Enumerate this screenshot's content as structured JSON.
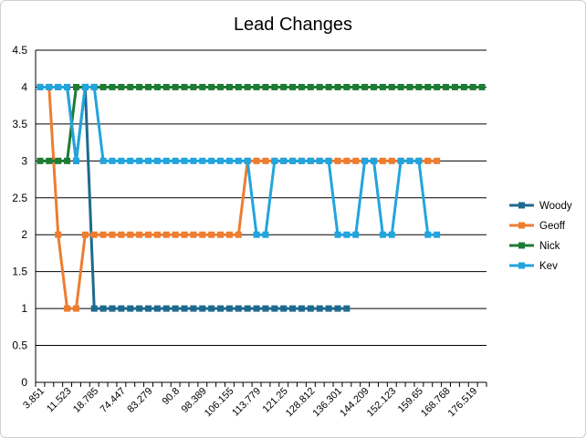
{
  "chart_data": {
    "type": "line",
    "title": "Lead Changes",
    "xlabel": "",
    "ylabel": "",
    "ylim": [
      0,
      4.5
    ],
    "yticks": [
      "0",
      "0.5",
      "1",
      "1.5",
      "2",
      "2.5",
      "3",
      "3.5",
      "4",
      "4.5"
    ],
    "x_tick_labels": [
      "3.851",
      "11.523",
      "18.785",
      "74.447",
      "83.279",
      "90.8",
      "98.389",
      "106.155",
      "113.779",
      "121.25",
      "128.812",
      "136.301",
      "144.209",
      "152.123",
      "159.65",
      "168.768",
      "176.519"
    ],
    "x_tick_label_every": 3,
    "n_categories": 50,
    "grid": true,
    "legend": "right",
    "series": [
      {
        "name": "Woody",
        "color": "#1e6a8e",
        "values": [
          4,
          4,
          4,
          4,
          3,
          4,
          1,
          1,
          1,
          1,
          1,
          1,
          1,
          1,
          1,
          1,
          1,
          1,
          1,
          1,
          1,
          1,
          1,
          1,
          1,
          1,
          1,
          1,
          1,
          1,
          1,
          1,
          1,
          1,
          1
        ]
      },
      {
        "name": "Geoff",
        "color": "#ed7d31",
        "values": [
          4,
          4,
          2,
          1,
          1,
          2,
          2,
          2,
          2,
          2,
          2,
          2,
          2,
          2,
          2,
          2,
          2,
          2,
          2,
          2,
          2,
          2,
          2,
          3,
          3,
          3,
          3,
          3,
          3,
          3,
          3,
          3,
          3,
          3,
          3,
          3,
          3,
          3,
          3,
          3,
          3,
          3,
          3,
          3,
          3
        ]
      },
      {
        "name": "Nick",
        "color": "#1e7b34",
        "values": [
          3,
          3,
          3,
          3,
          4,
          4,
          4,
          4,
          4,
          4,
          4,
          4,
          4,
          4,
          4,
          4,
          4,
          4,
          4,
          4,
          4,
          4,
          4,
          4,
          4,
          4,
          4,
          4,
          4,
          4,
          4,
          4,
          4,
          4,
          4,
          4,
          4,
          4,
          4,
          4,
          4,
          4,
          4,
          4,
          4,
          4,
          4,
          4,
          4,
          4
        ]
      },
      {
        "name": "Kev",
        "color": "#22a4dd",
        "values": [
          4,
          4,
          4,
          4,
          3,
          4,
          4,
          3,
          3,
          3,
          3,
          3,
          3,
          3,
          3,
          3,
          3,
          3,
          3,
          3,
          3,
          3,
          3,
          3,
          2,
          2,
          3,
          3,
          3,
          3,
          3,
          3,
          3,
          2,
          2,
          2,
          3,
          3,
          2,
          2,
          3,
          3,
          3,
          2,
          2
        ]
      }
    ]
  }
}
